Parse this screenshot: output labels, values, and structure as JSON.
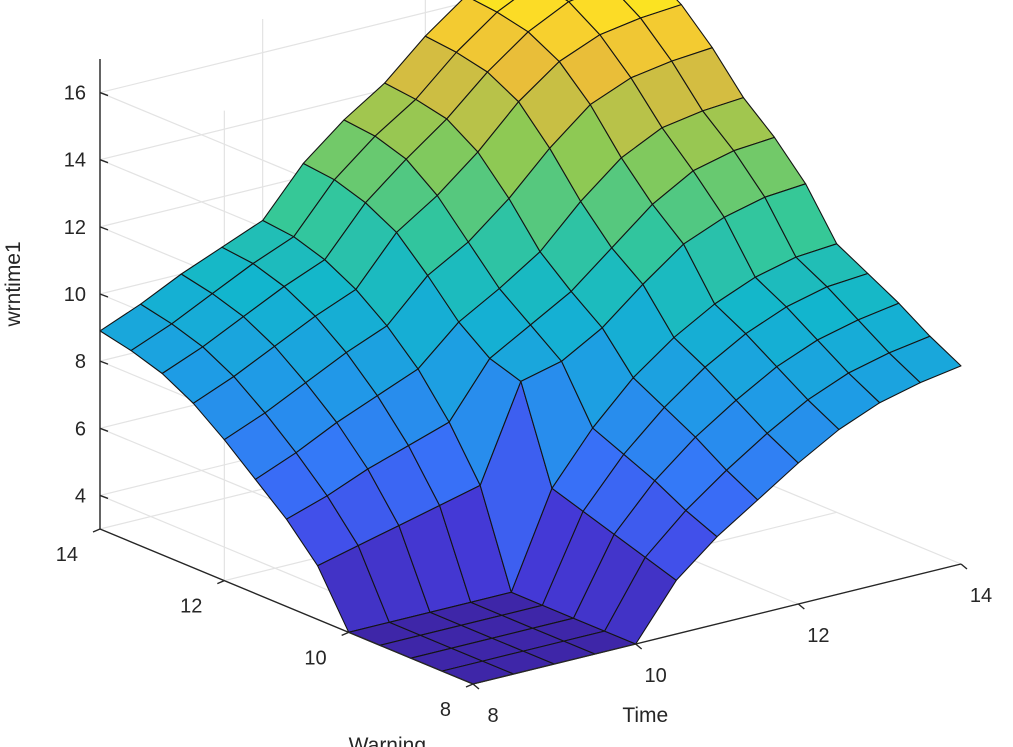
{
  "chart_data": {
    "type": "surface3d",
    "colormap": "parula",
    "grid": true,
    "xlabel": "Time",
    "ylabel": "Warning",
    "zlabel": "wrntime1",
    "xlim": [
      8,
      14
    ],
    "ylim": [
      8,
      14
    ],
    "zlim": [
      3,
      17
    ],
    "x_ticks": [
      8,
      10,
      12,
      14
    ],
    "y_ticks": [
      8,
      10,
      12,
      14
    ],
    "z_ticks": [
      4,
      6,
      8,
      10,
      12,
      14,
      16
    ],
    "x_tick_labels": [
      "8",
      "10",
      "12",
      "14"
    ],
    "y_tick_labels": [
      "8",
      "10",
      "12",
      "14"
    ],
    "z_tick_labels": [
      "4",
      "6",
      "8",
      "10",
      "12",
      "14",
      "16"
    ],
    "x": [
      8,
      8.5,
      9,
      9.5,
      10,
      10.5,
      11,
      11.5,
      12,
      12.5,
      13,
      13.5,
      14
    ],
    "y": [
      8,
      8.5,
      9,
      9.5,
      10,
      10.5,
      11,
      11.5,
      12,
      12.5,
      13,
      13.5,
      14
    ],
    "z_rows_note_axis": "rows follow Warning (y), columns follow Time (x)",
    "z": [
      [
        3.0,
        3.0,
        3.0,
        3.0,
        3.0,
        4.6,
        5.6,
        6.4,
        7.2,
        7.9,
        8.4,
        8.7,
        8.9
      ],
      [
        3.0,
        3.0,
        3.0,
        3.0,
        3.0,
        4.9,
        6.0,
        6.9,
        7.7,
        8.4,
        8.9,
        9.2,
        9.4
      ],
      [
        3.0,
        3.0,
        3.0,
        3.0,
        3.0,
        5.2,
        6.5,
        7.5,
        8.3,
        9.0,
        9.5,
        9.8,
        10.0
      ],
      [
        3.0,
        3.0,
        3.0,
        3.0,
        3.0,
        5.5,
        6.9,
        8.0,
        8.9,
        9.6,
        10.1,
        10.4,
        10.5
      ],
      [
        3.0,
        3.0,
        3.0,
        3.0,
        3.0,
        5.8,
        7.3,
        8.5,
        9.4,
        10.1,
        10.6,
        10.9,
        11.0
      ],
      [
        4.6,
        4.9,
        5.2,
        5.5,
        5.8,
        8.6,
        8.9,
        9.6,
        10.6,
        11.5,
        12.0,
        12.3,
        12.4
      ],
      [
        5.6,
        6.0,
        6.5,
        6.9,
        7.3,
        8.9,
        9.6,
        10.3,
        11.3,
        12.3,
        13.0,
        13.3,
        13.4
      ],
      [
        6.4,
        6.9,
        7.5,
        8.0,
        8.5,
        9.6,
        10.3,
        11.1,
        12.3,
        13.3,
        13.9,
        14.1,
        14.2
      ],
      [
        7.2,
        7.7,
        8.3,
        8.9,
        9.4,
        10.6,
        11.3,
        12.3,
        13.5,
        14.5,
        15.0,
        15.2,
        15.3
      ],
      [
        7.9,
        8.4,
        9.0,
        9.6,
        10.1,
        11.5,
        12.3,
        13.3,
        14.5,
        15.4,
        15.9,
        16.1,
        16.2
      ],
      [
        8.4,
        8.9,
        9.5,
        10.1,
        10.6,
        12.0,
        13.0,
        13.9,
        15.0,
        15.9,
        16.5,
        16.7,
        16.8
      ],
      [
        8.7,
        9.2,
        9.8,
        10.4,
        10.9,
        12.3,
        13.3,
        14.1,
        15.2,
        16.1,
        16.7,
        16.9,
        17.0
      ],
      [
        8.9,
        9.4,
        10.0,
        10.5,
        11.0,
        12.4,
        13.4,
        14.2,
        15.3,
        16.2,
        16.8,
        17.0,
        17.0
      ]
    ]
  }
}
